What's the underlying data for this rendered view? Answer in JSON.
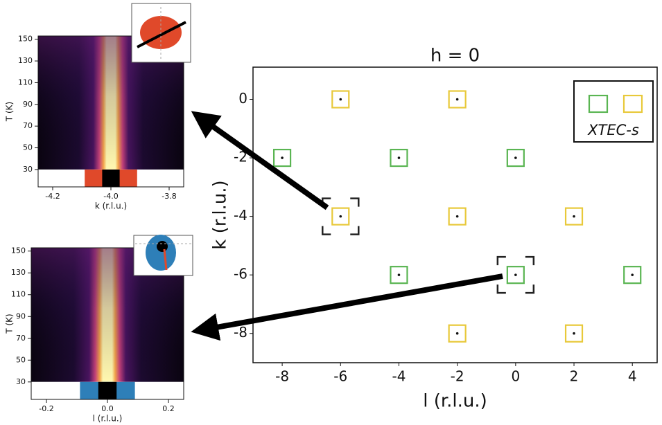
{
  "chart_data": [
    {
      "type": "scatter",
      "title": "h = 0",
      "x_label": "l (r.l.u.)",
      "y_label": "k (r.l.u.)",
      "xlim": [
        -9,
        4.85
      ],
      "ylim": [
        -9,
        1.1
      ],
      "xticks": [
        -8,
        -6,
        -4,
        -2,
        0,
        2,
        4
      ],
      "yticks": [
        0,
        -2,
        -4,
        -6,
        -8
      ],
      "legend_label": "XTEC-s",
      "legend_position": "upper right",
      "series": [
        {
          "color": "#e8c93a",
          "x": [
            -6,
            -2,
            -6,
            -2,
            2,
            -2,
            2
          ],
          "values": [
            0,
            0,
            -4,
            -4,
            -4,
            -8,
            -8
          ]
        },
        {
          "color": "#5ab552",
          "x": [
            -8,
            -4,
            0,
            -4,
            0,
            4
          ],
          "values": [
            -2,
            -2,
            -2,
            -6,
            -6,
            -6
          ]
        }
      ],
      "highlighted": [
        {
          "x": -6,
          "y": -4
        },
        {
          "x": 0,
          "y": -6
        }
      ]
    },
    {
      "type": "heatmap",
      "x_label": "k (r.l.u.)",
      "y_label": "T (K)",
      "xlim": [
        -4.25,
        -3.75
      ],
      "ylim": [
        14,
        153
      ],
      "xticks": [
        -4.2,
        {
          "value": -4,
          "label": "-4.0"
        },
        -3.8
      ],
      "yticks": [
        30,
        50,
        70,
        90,
        110,
        130,
        150
      ],
      "mask_color": "#e0492a"
    },
    {
      "type": "heatmap",
      "x_label": "l (r.l.u.)",
      "y_label": "T (K)",
      "xlim": [
        -0.25,
        0.25
      ],
      "ylim": [
        14,
        153
      ],
      "xticks": [
        -0.2,
        {
          "value": 0,
          "label": "0.0"
        },
        0.2
      ],
      "yticks": [
        30,
        50,
        70,
        90,
        110,
        130,
        150
      ],
      "mask_color": "#2e7fb8"
    }
  ]
}
